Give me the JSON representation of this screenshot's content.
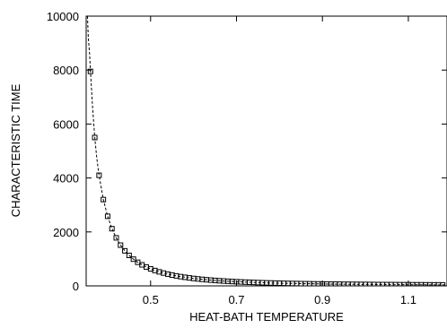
{
  "chart_data": {
    "type": "scatter",
    "xlabel": "HEAT-BATH TEMPERATURE",
    "ylabel": "CHARACTERISTIC TIME",
    "xlim": [
      0.35,
      1.19
    ],
    "ylim": [
      0,
      10000
    ],
    "xticks": [
      0.5,
      0.7,
      0.9,
      1.1
    ],
    "xtick_labels": [
      "0.5",
      "0.7",
      "0.9",
      "1.1"
    ],
    "yticks": [
      0,
      2000,
      4000,
      6000,
      8000,
      10000
    ],
    "ytick_labels": [
      "0",
      "2000",
      "4000",
      "6000",
      "8000",
      "10000"
    ],
    "grid": false,
    "series": [
      {
        "style": "open-square-markers",
        "color": "#000000",
        "x": [
          0.36,
          0.37,
          0.38,
          0.39,
          0.4,
          0.41,
          0.42,
          0.43,
          0.44,
          0.45,
          0.46,
          0.47,
          0.48,
          0.49,
          0.5,
          0.51,
          0.52,
          0.53,
          0.54,
          0.55,
          0.56,
          0.57,
          0.58,
          0.59,
          0.6,
          0.61,
          0.62,
          0.63,
          0.64,
          0.65,
          0.66,
          0.67,
          0.68,
          0.69,
          0.7,
          0.71,
          0.72,
          0.73,
          0.74,
          0.75,
          0.76,
          0.77,
          0.78,
          0.79,
          0.8,
          0.81,
          0.82,
          0.83,
          0.84,
          0.85,
          0.86,
          0.87,
          0.88,
          0.89,
          0.9,
          0.91,
          0.92,
          0.93,
          0.94,
          0.95,
          0.96,
          0.97,
          0.98,
          0.99,
          1.0,
          1.01,
          1.02,
          1.03,
          1.04,
          1.05,
          1.06,
          1.07,
          1.08,
          1.09,
          1.1,
          1.11,
          1.12,
          1.13,
          1.14,
          1.15,
          1.16,
          1.17,
          1.18
        ],
        "y": [
          7950,
          5500,
          4100,
          3200,
          2580,
          2120,
          1780,
          1510,
          1300,
          1130,
          990,
          875,
          780,
          700,
          630,
          570,
          520,
          475,
          435,
          400,
          370,
          343,
          318,
          296,
          276,
          258,
          242,
          227,
          214,
          202,
          190,
          180,
          171,
          162,
          154,
          147,
          140,
          134,
          128,
          122,
          117,
          112,
          108,
          104,
          100,
          96,
          92,
          89,
          86,
          83,
          80,
          78,
          75,
          73,
          71,
          69,
          67,
          65,
          63,
          61,
          60,
          58,
          57,
          55,
          54,
          53,
          51,
          50,
          49,
          48,
          47,
          46,
          45,
          44,
          43,
          42,
          41,
          41,
          40,
          39,
          38,
          38,
          37
        ]
      },
      {
        "style": "dashed-line",
        "color": "#000000",
        "x": [
          0.353,
          0.355,
          0.358,
          0.36,
          0.365,
          0.37,
          0.375,
          0.38,
          0.39,
          0.4,
          0.41,
          0.42,
          0.43,
          0.44,
          0.45,
          0.46,
          0.47,
          0.48,
          0.49,
          0.5,
          0.52,
          0.54,
          0.56,
          0.58,
          0.6,
          0.63,
          0.66,
          0.7,
          0.75,
          0.8,
          0.85,
          0.9,
          0.95,
          1.0,
          1.05,
          1.1,
          1.15,
          1.19
        ],
        "y": [
          10000,
          9200,
          8600,
          7950,
          6600,
          5500,
          4700,
          4100,
          3200,
          2580,
          2120,
          1780,
          1510,
          1300,
          1130,
          990,
          875,
          780,
          700,
          630,
          520,
          435,
          370,
          318,
          276,
          227,
          190,
          154,
          122,
          100,
          83,
          71,
          61,
          54,
          48,
          43,
          39,
          36
        ]
      }
    ]
  }
}
